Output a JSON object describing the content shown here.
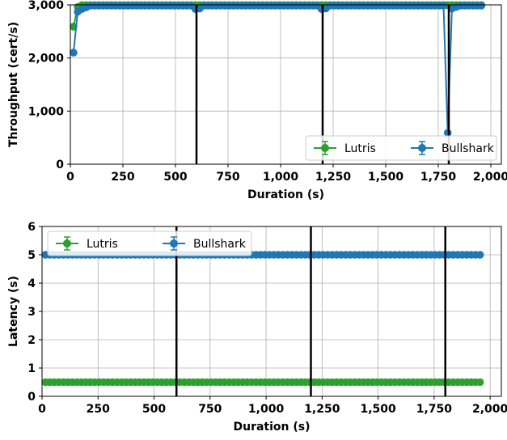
{
  "chart_data": [
    {
      "type": "line",
      "xlabel": "Duration (s)",
      "ylabel": "Throughput (cert/s)",
      "xlim": [
        0,
        2050
      ],
      "ylim": [
        0,
        3000
      ],
      "xticks": [
        0,
        250,
        500,
        750,
        1000,
        1250,
        1500,
        1750,
        2000
      ],
      "xtick_labels": [
        "0",
        "250",
        "500",
        "750",
        "1,000",
        "1,250",
        "1,500",
        "1,750",
        "2,000"
      ],
      "yticks": [
        0,
        1000,
        2000,
        3000
      ],
      "ytick_labels": [
        "0",
        "1,000",
        "2,000",
        "3,000"
      ],
      "grid": true,
      "legend_position": "bottom-right",
      "vertical_lines": [
        600,
        1200,
        1800
      ],
      "series": [
        {
          "name": "Lutris",
          "color": "#2ca02c",
          "x_start": 15,
          "x_step": 20,
          "x_count": 98,
          "default_y": 2995,
          "overrides": {
            "0": 2590,
            "1": 2960
          }
        },
        {
          "name": "Bullshark",
          "color": "#1f77b4",
          "x_start": 15,
          "x_step": 20,
          "x_count": 98,
          "default_y": 2985,
          "overrides": {
            "0": 2100,
            "1": 2870,
            "2": 2920,
            "3": 2950,
            "29": 2920,
            "30": 2930,
            "59": 2920,
            "60": 2930,
            "89": 590,
            "90": 2930,
            "91": 2960
          }
        }
      ]
    },
    {
      "type": "line",
      "xlabel": "Duration (s)",
      "ylabel": "Latency (s)",
      "xlim": [
        0,
        2050
      ],
      "ylim": [
        0,
        6
      ],
      "xticks": [
        0,
        250,
        500,
        750,
        1000,
        1250,
        1500,
        1750,
        2000
      ],
      "xtick_labels": [
        "0",
        "250",
        "500",
        "750",
        "1,000",
        "1,250",
        "1,500",
        "1,750",
        "2,000"
      ],
      "yticks": [
        0,
        1,
        2,
        3,
        4,
        5,
        6
      ],
      "ytick_labels": [
        "0",
        "1",
        "2",
        "3",
        "4",
        "5",
        "6"
      ],
      "grid": true,
      "legend_position": "top-left",
      "vertical_lines": [
        600,
        1200,
        1800
      ],
      "series": [
        {
          "name": "Lutris",
          "color": "#2ca02c",
          "x_start": 15,
          "x_step": 20,
          "x_count": 98,
          "default_y": 0.5,
          "overrides": {}
        },
        {
          "name": "Bullshark",
          "color": "#1f77b4",
          "x_start": 15,
          "x_step": 20,
          "x_count": 98,
          "default_y": 5.0,
          "overrides": {}
        }
      ]
    }
  ]
}
